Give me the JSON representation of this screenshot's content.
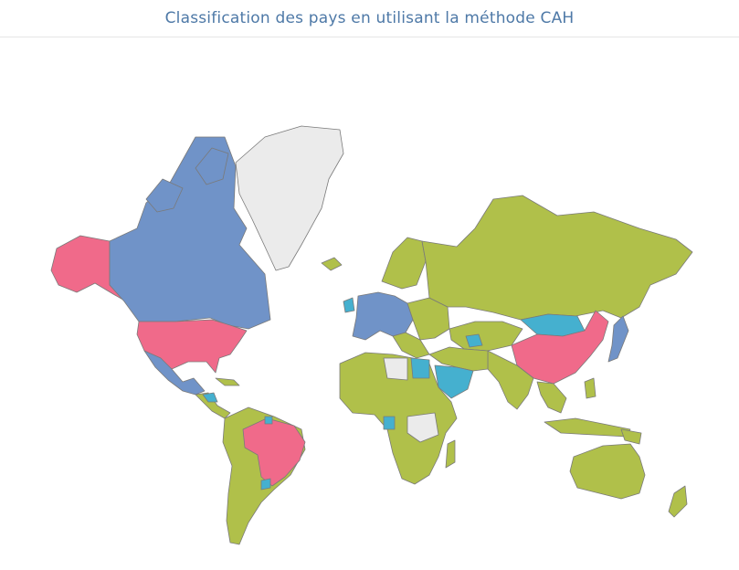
{
  "title": "Classification des pays en utilisant la méthode  CAH",
  "colors": {
    "cluster_pink": "#f06a8a",
    "cluster_blue": "#7093c8",
    "cluster_cyan": "#45b0cf",
    "cluster_green": "#b0c04a",
    "no_data": "#ebebeb"
  }
}
